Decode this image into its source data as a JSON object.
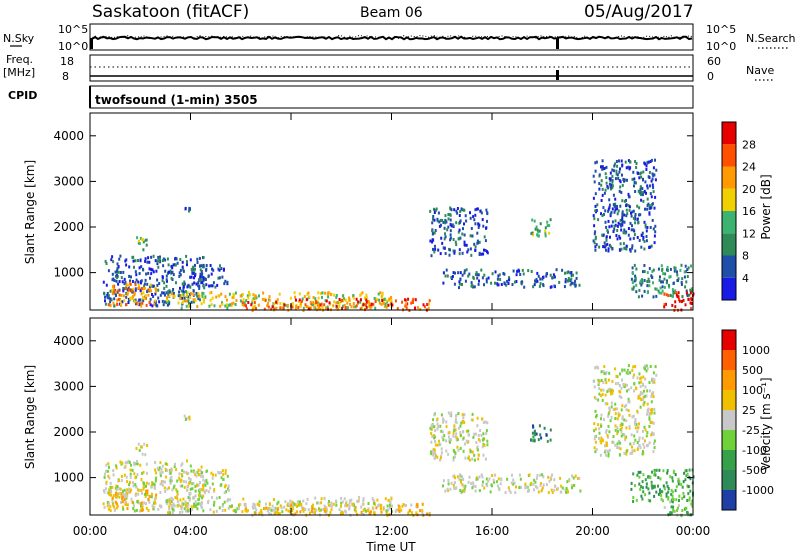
{
  "header": {
    "station": "Saskatoon (fitACF)",
    "beam": "Beam 06",
    "date": "05/Aug/2017"
  },
  "top_panels": {
    "nsky_label": "N.Sky",
    "nsky_ticks": [
      "10^5",
      "10^0"
    ],
    "nsearch_label": "N.Search",
    "nsearch_ticks": [
      "10^5",
      "10^0"
    ],
    "freq_label": "Freq.",
    "freq_unit": "[MHz]",
    "freq_ticks": [
      "18",
      "8"
    ],
    "nave_label": "Nave",
    "nave_ticks": [
      "60",
      "0"
    ],
    "cpid_label": "CPID",
    "cpid_text": "twofsound (1-min) 3505"
  },
  "chart_data": [
    {
      "type": "heatmap",
      "name": "power-panel",
      "ylabel": "Slant Range [km]",
      "yticks": [
        "1000",
        "2000",
        "3000",
        "4000"
      ],
      "ylim": [
        180,
        4500
      ],
      "colorbar_label": "Power [dB]",
      "colorbar_ticks": [
        "4",
        "8",
        "12",
        "16",
        "20",
        "24",
        "28"
      ],
      "colors": [
        "#1a1ae6",
        "#1f4fa8",
        "#2e8b57",
        "#3cb371",
        "#f0d000",
        "#ff9a00",
        "#ff5000",
        "#e60000"
      ],
      "regions": [
        {
          "t0": 0.5,
          "t1": 4.5,
          "r0": 300,
          "r1": 1400,
          "level": 1
        },
        {
          "t0": 0.7,
          "t1": 2.6,
          "r0": 300,
          "r1": 800,
          "level": 5
        },
        {
          "t0": 3.0,
          "t1": 12.0,
          "r0": 250,
          "r1": 600,
          "level": 4
        },
        {
          "t0": 6.0,
          "t1": 13.5,
          "r0": 200,
          "r1": 450,
          "level": 6
        },
        {
          "t0": 4.0,
          "t1": 5.5,
          "r0": 700,
          "r1": 1200,
          "level": 1
        },
        {
          "t0": 1.8,
          "t1": 2.3,
          "r0": 1500,
          "r1": 1800,
          "level": 3
        },
        {
          "t0": 3.7,
          "t1": 4.0,
          "r0": 2300,
          "r1": 2500,
          "level": 1
        },
        {
          "t0": 13.5,
          "t1": 15.8,
          "r0": 1400,
          "r1": 2450,
          "level": 1
        },
        {
          "t0": 14.0,
          "t1": 19.5,
          "r0": 700,
          "r1": 1100,
          "level": 1
        },
        {
          "t0": 17.5,
          "t1": 18.3,
          "r0": 1800,
          "r1": 2200,
          "level": 3
        },
        {
          "t0": 20.0,
          "t1": 22.5,
          "r0": 1500,
          "r1": 3500,
          "level": 1
        },
        {
          "t0": 21.5,
          "t1": 24.0,
          "r0": 500,
          "r1": 1200,
          "level": 2
        },
        {
          "t0": 22.8,
          "t1": 24.0,
          "r0": 200,
          "r1": 600,
          "level": 7
        }
      ]
    },
    {
      "type": "heatmap",
      "name": "velocity-panel",
      "ylabel": "Slant Range [km]",
      "yticks": [
        "1000",
        "2000",
        "3000",
        "4000"
      ],
      "ylim": [
        180,
        4500
      ],
      "xlabel": "Time UT",
      "xticks": [
        "00:00",
        "04:00",
        "08:00",
        "12:00",
        "16:00",
        "20:00",
        "00:00"
      ],
      "xlim": [
        0,
        24
      ],
      "colorbar_label": "Velocity [m s⁻¹]",
      "colorbar_ticks": [
        "1000",
        "500",
        "100",
        "25",
        "-25",
        "-100",
        "-500",
        "-1000"
      ],
      "colors": [
        "#1f3fa6",
        "#2e8b57",
        "#35a24a",
        "#6fd23a",
        "#c8c8c8",
        "#f0c000",
        "#ff9a00",
        "#ff6000",
        "#e60000"
      ],
      "regions": [
        {
          "t0": 0.5,
          "t1": 4.5,
          "r0": 300,
          "r1": 1400,
          "level": 4
        },
        {
          "t0": 0.7,
          "t1": 2.6,
          "r0": 300,
          "r1": 800,
          "level": 5
        },
        {
          "t0": 3.0,
          "t1": 12.0,
          "r0": 250,
          "r1": 600,
          "level": 4
        },
        {
          "t0": 6.0,
          "t1": 13.5,
          "r0": 200,
          "r1": 450,
          "level": 5
        },
        {
          "t0": 4.0,
          "t1": 5.5,
          "r0": 700,
          "r1": 1200,
          "level": 4
        },
        {
          "t0": 1.8,
          "t1": 2.3,
          "r0": 1500,
          "r1": 1800,
          "level": 4
        },
        {
          "t0": 3.7,
          "t1": 4.0,
          "r0": 2300,
          "r1": 2500,
          "level": 4
        },
        {
          "t0": 13.5,
          "t1": 15.8,
          "r0": 1400,
          "r1": 2450,
          "level": 4
        },
        {
          "t0": 14.0,
          "t1": 19.5,
          "r0": 700,
          "r1": 1100,
          "level": 4
        },
        {
          "t0": 17.5,
          "t1": 18.3,
          "r0": 1800,
          "r1": 2200,
          "level": 1
        },
        {
          "t0": 20.0,
          "t1": 22.5,
          "r0": 1500,
          "r1": 3500,
          "level": 4
        },
        {
          "t0": 21.5,
          "t1": 24.0,
          "r0": 500,
          "r1": 1200,
          "level": 2
        },
        {
          "t0": 22.8,
          "t1": 24.0,
          "r0": 200,
          "r1": 600,
          "level": 3
        }
      ]
    }
  ]
}
